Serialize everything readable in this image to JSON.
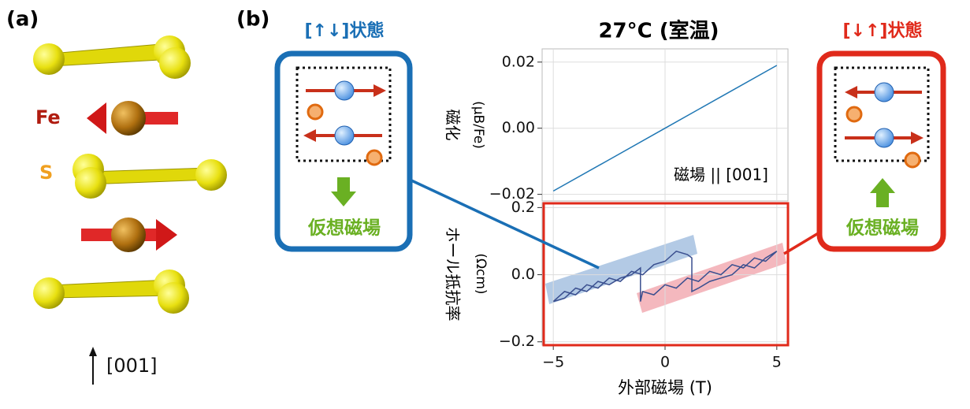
{
  "figure": {
    "panel_a": {
      "label": "(a)",
      "fe": "Fe",
      "s": "S",
      "axis": "[001]"
    },
    "panel_b": {
      "label": "(b)",
      "left_box": {
        "title": "[↑↓]状態",
        "caption": "仮想磁場"
      },
      "right_box": {
        "title": "[↓↑]状態",
        "caption": "仮想磁場"
      }
    }
  },
  "chart_data": [
    {
      "type": "line",
      "title": "27°C (室温)",
      "y_label": "磁化",
      "y_unit": "(μB/Fe)",
      "annotation": "磁場 || [001]",
      "x": [
        -5,
        -2.5,
        0,
        2.5,
        5
      ],
      "values": [
        -0.019,
        -0.0095,
        0.0,
        0.0095,
        0.019
      ],
      "color": "#1f77b4",
      "xlim": [
        -5.5,
        5.5
      ],
      "ylim": [
        -0.022,
        0.024
      ],
      "yticks": [
        {
          "value": -0.02,
          "label": "−0.02"
        },
        {
          "value": 0,
          "label": "0.00"
        },
        0.02
      ],
      "grid": true
    },
    {
      "type": "line",
      "x_label": "外部磁場 (T)",
      "y_label": "ホール抵抗率",
      "y_unit": "(Ωcm)",
      "x": [
        -5,
        -4.5,
        -4,
        -3.5,
        -3,
        -2.5,
        -2,
        -1.5,
        -1,
        -0.5,
        0,
        0.5,
        1,
        1.2,
        1.2,
        1.5,
        2,
        2.5,
        3,
        3.5,
        4,
        4.5,
        5,
        4.5,
        4,
        3.5,
        3,
        2.5,
        2,
        1.5,
        1,
        0.5,
        0,
        -0.5,
        -1,
        -1.1,
        -1.1,
        -1.5,
        -2,
        -2.5,
        -3,
        -3.5,
        -4,
        -4.5,
        -5
      ],
      "values": [
        -0.08,
        -0.05,
        -0.06,
        -0.03,
        -0.04,
        -0.01,
        -0.02,
        0.01,
        0.0,
        0.03,
        0.04,
        0.07,
        0.06,
        0.05,
        -0.05,
        -0.04,
        -0.02,
        -0.01,
        0.0,
        0.03,
        0.02,
        0.05,
        0.07,
        0.04,
        0.05,
        0.02,
        0.03,
        0.0,
        0.01,
        -0.02,
        -0.01,
        -0.04,
        -0.03,
        -0.06,
        -0.05,
        -0.08,
        0.02,
        0.0,
        -0.01,
        -0.03,
        -0.02,
        -0.05,
        -0.04,
        -0.07,
        -0.08
      ],
      "color": "#3a4f8f",
      "xlim": [
        -5.5,
        5.5
      ],
      "ylim": [
        -0.21,
        0.215
      ],
      "xticks": [
        {
          "value": -5,
          "label": "−5"
        },
        0,
        5
      ],
      "yticks": [
        {
          "value": -0.2,
          "label": "−0.2"
        },
        {
          "value": 0,
          "label": "0.0"
        },
        0.2
      ],
      "grid": true
    }
  ]
}
